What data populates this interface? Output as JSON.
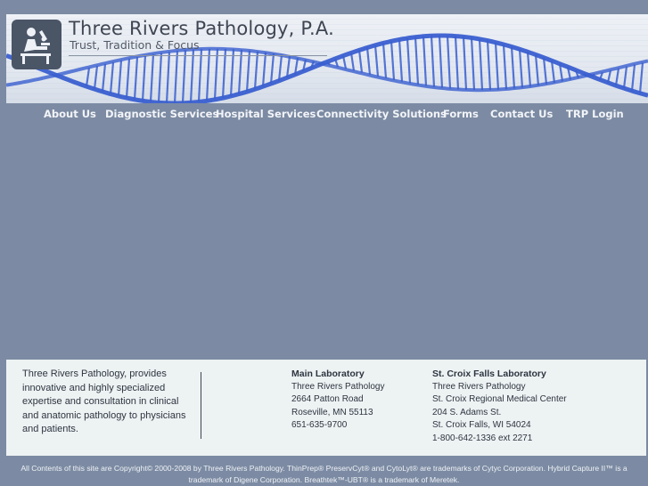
{
  "header": {
    "site_title": "Three Rivers Pathology, P.A.",
    "tagline": "Trust, Tradition & Focus",
    "logo_icon": "microscope-person-icon"
  },
  "nav": {
    "items": [
      {
        "label": "About Us"
      },
      {
        "label": "Diagnostic Services"
      },
      {
        "label": "Hospital Services"
      },
      {
        "label": "Connectivity Solutions"
      },
      {
        "label": "Forms"
      },
      {
        "label": "Contact Us"
      },
      {
        "label": "TRP Login"
      }
    ]
  },
  "info": {
    "about": "Three Rivers Pathology, provides innovative and highly specialized expertise and consultation in clinical and anatomic pathology to physicians and patients.",
    "main_lab": {
      "name": "Main Laboratory",
      "lines": [
        "Three Rivers Pathology",
        "2664 Patton Road",
        "Roseville, MN 55113",
        "651-635-9700"
      ]
    },
    "stcroix_lab": {
      "name": "St. Croix Falls Laboratory",
      "lines": [
        "Three Rivers Pathology",
        "St. Croix Regional Medical Center",
        "204 S. Adams St.",
        "St. Croix Falls, WI 54024",
        "1-800-642-1336 ext 2271"
      ]
    }
  },
  "footer": {
    "copyright": "All Contents of this site are Copyright© 2000-2008 by Three Rivers Pathology. ThinPrep® PreservCyt® and CytoLyt® are trademarks of Cytyc Corporation. Hybrid Capture II™ is a trademark of Digene Corporation. Breathtek™-UBT® is a trademark of Meretek."
  },
  "colors": {
    "page_bg": "#7c8ba3",
    "panel_bg": "#edf2f3",
    "dna_blue": "#3a5fd0"
  }
}
